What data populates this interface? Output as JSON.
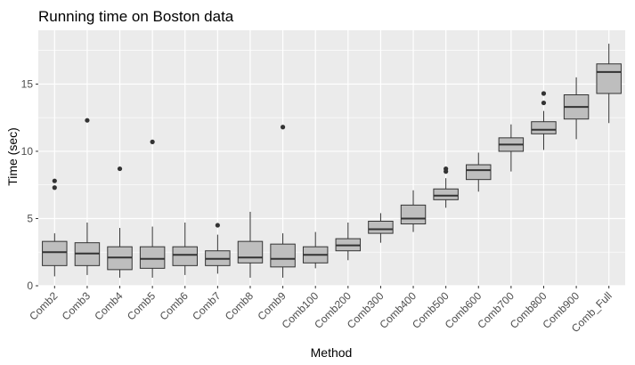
{
  "chart_data": {
    "type": "boxplot",
    "title": "Running time on Boston data",
    "xlabel": "Method",
    "ylabel": "Time (sec)",
    "ylim": [
      0,
      19
    ],
    "yticks": [
      0,
      5,
      10,
      15
    ],
    "grid": true,
    "legend": "none",
    "colors": {
      "panel_bg": "#ebebeb",
      "grid_major": "#ffffff",
      "box_fill": "#bebebe",
      "box_stroke": "#333333",
      "tick_text": "#4d4d4d"
    },
    "categories": [
      "Comb2",
      "Comb3",
      "Comb4",
      "Comb5",
      "Comb6",
      "Comb7",
      "Comb8",
      "Comb9",
      "Comb100",
      "Comb200",
      "Comb300",
      "Comb400",
      "Comb500",
      "Comb600",
      "Comb700",
      "Comb800",
      "Comb900",
      "Comb_Full"
    ],
    "boxes": [
      {
        "min": 0.7,
        "q1": 1.5,
        "median": 2.5,
        "q3": 3.3,
        "max": 3.9,
        "outliers": [
          7.3,
          7.8
        ]
      },
      {
        "min": 0.8,
        "q1": 1.5,
        "median": 2.4,
        "q3": 3.2,
        "max": 4.7,
        "outliers": [
          12.3
        ]
      },
      {
        "min": 0.6,
        "q1": 1.2,
        "median": 2.1,
        "q3": 2.9,
        "max": 4.3,
        "outliers": [
          8.7
        ]
      },
      {
        "min": 0.6,
        "q1": 1.3,
        "median": 2.0,
        "q3": 2.9,
        "max": 4.4,
        "outliers": [
          10.7
        ]
      },
      {
        "min": 0.8,
        "q1": 1.5,
        "median": 2.3,
        "q3": 2.9,
        "max": 4.7,
        "outliers": []
      },
      {
        "min": 0.9,
        "q1": 1.5,
        "median": 2.0,
        "q3": 2.6,
        "max": 3.8,
        "outliers": [
          4.5
        ]
      },
      {
        "min": 0.6,
        "q1": 1.7,
        "median": 2.1,
        "q3": 3.3,
        "max": 5.5,
        "outliers": []
      },
      {
        "min": 0.6,
        "q1": 1.4,
        "median": 2.0,
        "q3": 3.1,
        "max": 3.9,
        "outliers": [
          11.8
        ]
      },
      {
        "min": 1.3,
        "q1": 1.7,
        "median": 2.3,
        "q3": 2.9,
        "max": 4.0,
        "outliers": []
      },
      {
        "min": 1.9,
        "q1": 2.6,
        "median": 3.0,
        "q3": 3.5,
        "max": 4.7,
        "outliers": []
      },
      {
        "min": 3.2,
        "q1": 3.9,
        "median": 4.2,
        "q3": 4.8,
        "max": 5.4,
        "outliers": []
      },
      {
        "min": 4.0,
        "q1": 4.6,
        "median": 5.0,
        "q3": 6.0,
        "max": 7.1,
        "outliers": []
      },
      {
        "min": 5.8,
        "q1": 6.4,
        "median": 6.7,
        "q3": 7.2,
        "max": 8.0,
        "outliers": [
          8.5,
          8.7
        ]
      },
      {
        "min": 7.0,
        "q1": 7.9,
        "median": 8.6,
        "q3": 9.0,
        "max": 9.9,
        "outliers": []
      },
      {
        "min": 8.5,
        "q1": 10.0,
        "median": 10.5,
        "q3": 11.0,
        "max": 12.0,
        "outliers": []
      },
      {
        "min": 10.1,
        "q1": 11.3,
        "median": 11.6,
        "q3": 12.2,
        "max": 13.0,
        "outliers": [
          13.6,
          14.3
        ]
      },
      {
        "min": 10.9,
        "q1": 12.4,
        "median": 13.3,
        "q3": 14.2,
        "max": 15.5,
        "outliers": []
      },
      {
        "min": 12.1,
        "q1": 14.3,
        "median": 15.9,
        "q3": 16.5,
        "max": 18.0,
        "outliers": []
      }
    ]
  }
}
